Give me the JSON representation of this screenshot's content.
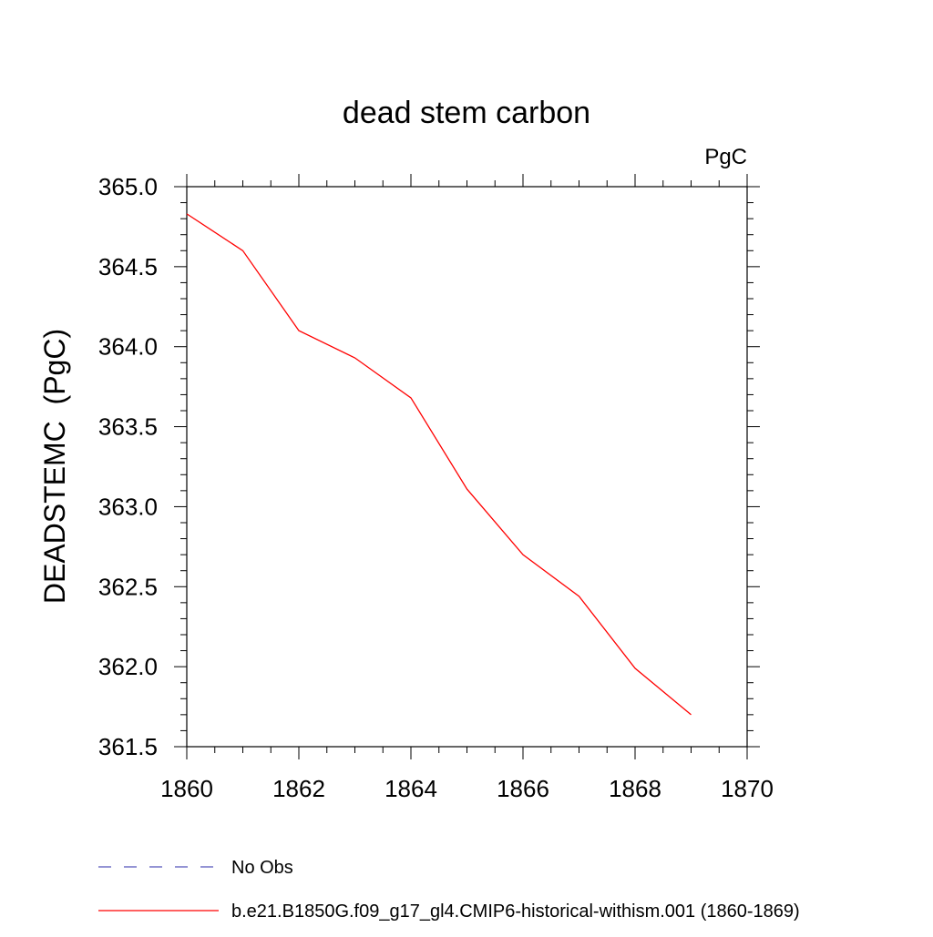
{
  "chart_data": {
    "type": "line",
    "title": "dead stem carbon",
    "units_label": "PgC",
    "ylabel": "DEADSTEMC  (PgC)",
    "xlabel": "",
    "xlim": [
      1860,
      1870
    ],
    "ylim": [
      361.5,
      365.0
    ],
    "x_ticks": [
      "1860",
      "1862",
      "1864",
      "1866",
      "1868",
      "1870"
    ],
    "y_ticks": [
      "361.5",
      "362.0",
      "362.5",
      "363.0",
      "363.5",
      "364.0",
      "364.5",
      "365.0"
    ],
    "grid": false,
    "legend_position": "bottom-left",
    "series": [
      {
        "name": "b.e21.B1850G.f09_g17_gl4.CMIP6-historical-withism.001 (1860-1869)",
        "color": "#ff0000",
        "style": "solid",
        "x": [
          1860,
          1861,
          1862,
          1863,
          1864,
          1865,
          1866,
          1867,
          1868,
          1869
        ],
        "values": [
          364.83,
          364.6,
          364.1,
          363.93,
          363.68,
          363.11,
          362.7,
          362.44,
          361.99,
          361.7
        ]
      }
    ],
    "legend": [
      {
        "label": "No Obs",
        "color": "#5555bb",
        "style": "dashed"
      },
      {
        "label": "b.e21.B1850G.f09_g17_gl4.CMIP6-historical-withism.001 (1860-1869)",
        "color": "#ff0000",
        "style": "solid"
      }
    ]
  }
}
